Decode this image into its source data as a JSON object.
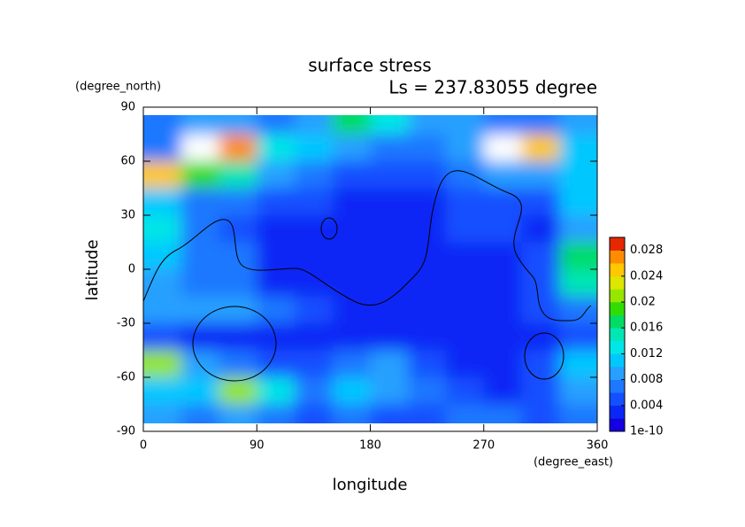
{
  "chart_data": {
    "type": "heatmap",
    "title": "surface stress",
    "subtitle": "Ls = 237.83055 degree",
    "xlabel": "longitude",
    "ylabel": "latitude",
    "xunit": "(degree_east)",
    "yunit": "(degree_north)",
    "x": [
      15,
      45,
      75,
      105,
      135,
      165,
      195,
      225,
      255,
      285,
      315,
      345
    ],
    "y": [
      82.5,
      67.5,
      52.5,
      37.5,
      22.5,
      7.5,
      -7.5,
      -22.5,
      -37.5,
      -52.5,
      -67.5,
      -82.5
    ],
    "z": [
      [
        0.008,
        0.01,
        0.01,
        0.008,
        0.01,
        0.018,
        0.014,
        0.01,
        0.01,
        0.008,
        0.008,
        0.01
      ],
      [
        0.008,
        0.032,
        0.028,
        0.014,
        0.012,
        0.01,
        0.008,
        0.008,
        0.01,
        0.031,
        0.026,
        0.012
      ],
      [
        0.026,
        0.02,
        0.016,
        0.01,
        0.008,
        0.006,
        0.006,
        0.006,
        0.008,
        0.01,
        0.01,
        0.012
      ],
      [
        0.012,
        0.008,
        0.008,
        0.006,
        0.006,
        0.004,
        0.004,
        0.004,
        0.006,
        0.006,
        0.006,
        0.012
      ],
      [
        0.014,
        0.008,
        0.006,
        0.004,
        0.004,
        0.004,
        0.004,
        0.004,
        0.006,
        0.006,
        0.004,
        0.01
      ],
      [
        0.012,
        0.008,
        0.008,
        0.004,
        0.004,
        0.004,
        0.004,
        0.004,
        0.004,
        0.004,
        0.006,
        0.018
      ],
      [
        0.01,
        0.008,
        0.008,
        0.004,
        0.004,
        0.004,
        0.004,
        0.004,
        0.004,
        0.004,
        0.006,
        0.016
      ],
      [
        0.01,
        0.01,
        0.01,
        0.008,
        0.006,
        0.004,
        0.004,
        0.004,
        0.004,
        0.004,
        0.006,
        0.008
      ],
      [
        0.006,
        0.004,
        0.004,
        0.004,
        0.004,
        0.004,
        0.004,
        0.004,
        0.004,
        0.004,
        0.004,
        0.006
      ],
      [
        0.022,
        0.01,
        0.008,
        0.006,
        0.006,
        0.008,
        0.01,
        0.006,
        0.004,
        0.004,
        0.006,
        0.012
      ],
      [
        0.012,
        0.012,
        0.022,
        0.014,
        0.008,
        0.012,
        0.01,
        0.008,
        0.006,
        0.004,
        0.006,
        0.01
      ],
      [
        0.01,
        0.008,
        0.01,
        0.008,
        0.006,
        0.008,
        0.006,
        0.006,
        0.008,
        0.008,
        0.006,
        0.008
      ]
    ],
    "xlim": [
      0,
      360
    ],
    "xticks": [
      0,
      90,
      180,
      270,
      360
    ],
    "ylim": [
      -90,
      90
    ],
    "yticks": [
      -90,
      -60,
      -30,
      0,
      30,
      60,
      90
    ],
    "clim": [
      1e-10,
      0.03
    ],
    "cticks": [
      1e-10,
      0.004,
      0.008,
      0.012,
      0.016,
      0.02,
      0.024,
      0.028
    ],
    "colors": [
      "#1400e0",
      "#0a28f5",
      "#1450ff",
      "#1e78ff",
      "#28a0ff",
      "#00c8ff",
      "#00e6e6",
      "#00e6b4",
      "#00dc64",
      "#32dc00",
      "#96e600",
      "#dce600",
      "#ffc800",
      "#ff8c00",
      "#e62800"
    ],
    "over_color": "#ffffff"
  }
}
